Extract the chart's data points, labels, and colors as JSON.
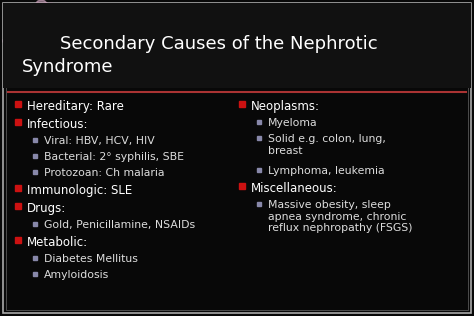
{
  "background_color": "#080808",
  "border_color": "#aaaaaa",
  "title_line1": "Secondary Causes of the Nephrotic",
  "title_line2": "Syndrome",
  "title_color": "#ffffff",
  "title_fontsize": 13,
  "divider_color": "#aa3333",
  "bullet_red": "#cc1111",
  "bullet_gray": "#8888aa",
  "text_color": "#ffffff",
  "sub_text_color": "#dddddd",
  "ornament_color": "#c8a8b8",
  "left_column": [
    {
      "level": 1,
      "bullet": "red",
      "text": "Hereditary: Rare"
    },
    {
      "level": 1,
      "bullet": "red",
      "text": "Infectious:"
    },
    {
      "level": 2,
      "bullet": "gray",
      "text": "Viral: HBV, HCV, HIV"
    },
    {
      "level": 2,
      "bullet": "gray",
      "text": "Bacterial: 2° syphilis, SBE"
    },
    {
      "level": 2,
      "bullet": "gray",
      "text": "Protozoan: Ch malaria"
    },
    {
      "level": 1,
      "bullet": "red",
      "text": "Immunologic: SLE"
    },
    {
      "level": 1,
      "bullet": "red",
      "text": "Drugs:"
    },
    {
      "level": 2,
      "bullet": "gray",
      "text": "Gold, Penicillamine, NSAIDs"
    },
    {
      "level": 1,
      "bullet": "red",
      "text": "Metabolic:"
    },
    {
      "level": 2,
      "bullet": "gray",
      "text": "Diabetes Mellitus"
    },
    {
      "level": 2,
      "bullet": "gray",
      "text": "Amyloidosis"
    }
  ],
  "right_column": [
    {
      "level": 1,
      "bullet": "red",
      "text": "Neoplasms:"
    },
    {
      "level": 2,
      "bullet": "gray",
      "text": "Myeloma"
    },
    {
      "level": 2,
      "bullet": "gray",
      "text": "Solid e.g. colon, lung,\nbreast"
    },
    {
      "level": 2,
      "bullet": "gray",
      "text": "Lymphoma, leukemia"
    },
    {
      "level": 1,
      "bullet": "red",
      "text": "Miscellaneous:"
    },
    {
      "level": 2,
      "bullet": "gray",
      "text": "Massive obesity, sleep\napnea syndrome, chronic\nreflux nephropathy (FSGS)"
    }
  ],
  "fig_width": 4.74,
  "fig_height": 3.16,
  "dpi": 100
}
